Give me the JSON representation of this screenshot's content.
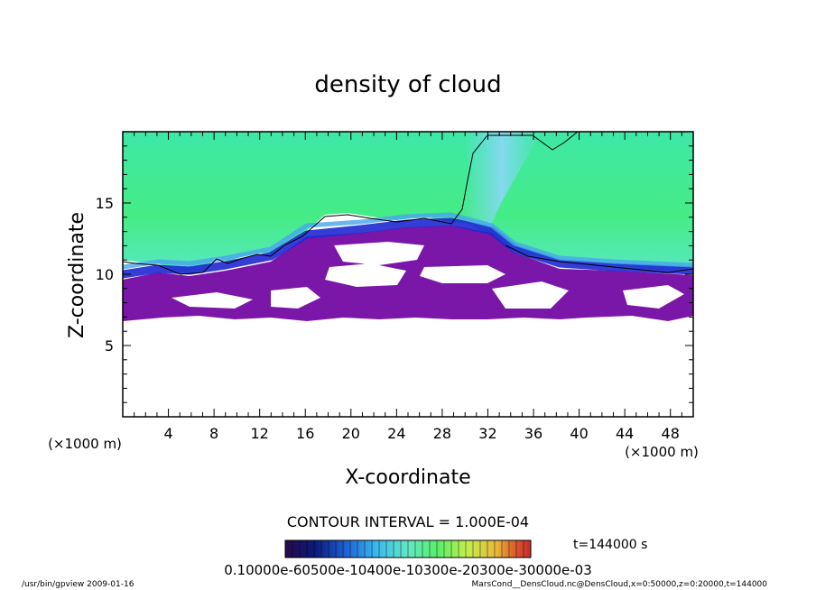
{
  "chart_data": {
    "type": "heatmap",
    "title": "density of cloud",
    "xlabel": "X-coordinate",
    "ylabel": "Z-coordinate",
    "x_unit": "(×1000 m)",
    "y_unit": "(×1000 m)",
    "xlim": [
      0,
      50
    ],
    "ylim": [
      0,
      20
    ],
    "x_ticks": [
      4,
      8,
      12,
      16,
      20,
      24,
      28,
      32,
      36,
      40,
      44,
      48
    ],
    "y_ticks": [
      5,
      10,
      15
    ],
    "grid": false,
    "contour_interval": "CONTOUR INTERVAL = 1.000E-04",
    "time_label": "t=144000 s",
    "colorbar": {
      "labels_text": "0.10000e-60500e-10400e-10300e-20300e-30000e-03",
      "colors": [
        "#2a0a4a",
        "#0a1a7a",
        "#1e63d6",
        "#3ab8ee",
        "#62e8c4",
        "#58ee6a",
        "#c2ee4e",
        "#e8b83a",
        "#d8582a",
        "#c82a2a"
      ]
    },
    "cloud_layer": {
      "dense_base_z": [
        7.1,
        7.6
      ],
      "top_z": [
        10.6,
        13.0
      ],
      "upper_region_color": "#3fe08e",
      "dense_color": "#7a17a8",
      "edge_color": "#1e28d2"
    }
  },
  "footer": {
    "left": "/usr/bin/gpview   2009-01-16",
    "right": "MarsCond__DensCloud.nc@DensCloud,x=0:50000,z=0:20000,t=144000"
  }
}
